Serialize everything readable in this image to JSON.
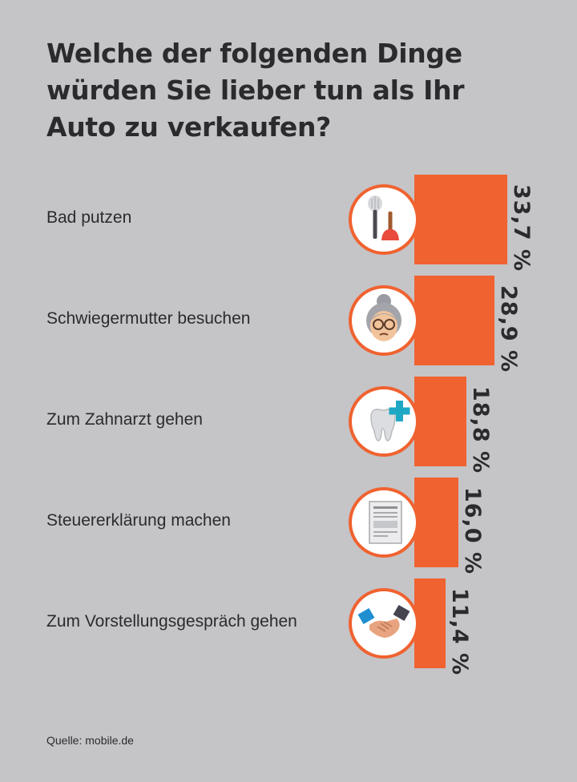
{
  "title_lines": [
    "Welche der folgenden Dinge",
    "würden Sie lieber tun als Ihr",
    "Auto zu verkaufen?"
  ],
  "source": "Quelle: mobile.de",
  "colors": {
    "background": "#c5c4c7",
    "bar": "#f0622f",
    "text": "#2b2b2e"
  },
  "chart_data": {
    "type": "bar",
    "orientation": "horizontal",
    "title": "Welche der folgenden Dinge würden Sie lieber tun als Ihr Auto zu verkaufen?",
    "categories": [
      "Bad putzen",
      "Schwiegermutter besuchen",
      "Zum Zahnarzt gehen",
      "Steuererklärung machen",
      "Zum Vorstellungsgespräch gehen"
    ],
    "values": [
      33.7,
      28.9,
      18.8,
      16.0,
      11.4
    ],
    "value_labels": [
      "33,7 %",
      "28,9 %",
      "18,8 %",
      "16,0 %",
      "11,4 %"
    ],
    "icons": [
      "toilet-brush-plunger-icon",
      "grandmother-icon",
      "tooth-plus-icon",
      "tax-form-icon",
      "handshake-icon"
    ],
    "grid": false,
    "legend": "none"
  }
}
